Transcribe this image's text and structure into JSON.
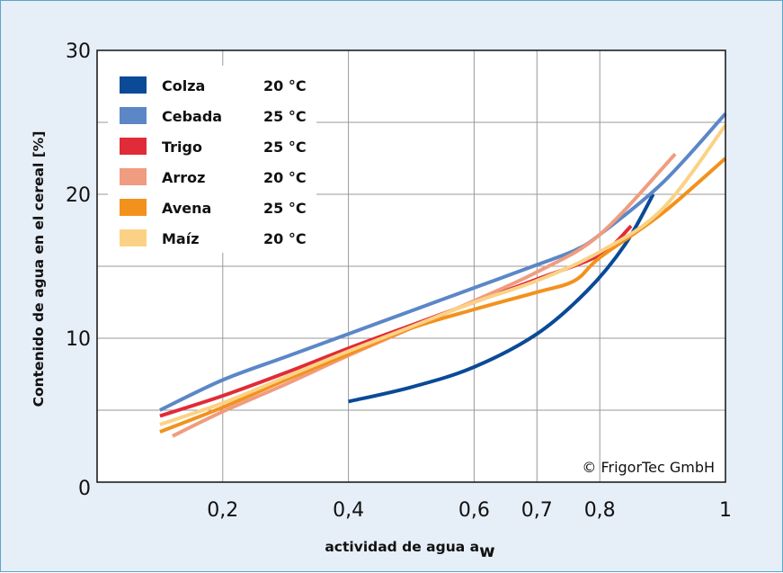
{
  "chart_data": {
    "type": "line",
    "xlabel": "actividad de agua a",
    "xlabel_subscript": "w",
    "ylabel": "Contenido de agua en el cereal [%]",
    "xlim": [
      0.0,
      1.0
    ],
    "ylim": [
      0,
      30
    ],
    "x_ticks": [
      {
        "value": 0.2,
        "label": "0,2"
      },
      {
        "value": 0.4,
        "label": "0,4"
      },
      {
        "value": 0.6,
        "label": "0,6"
      },
      {
        "value": 0.7,
        "label": "0,7"
      },
      {
        "value": 0.8,
        "label": "0,8"
      },
      {
        "value": 1.0,
        "label": "1"
      }
    ],
    "y_ticks": [
      {
        "value": 0,
        "label": "0"
      },
      {
        "value": 10,
        "label": "10"
      },
      {
        "value": 20,
        "label": "20"
      },
      {
        "value": 30,
        "label": "30"
      }
    ],
    "x_gridlines": [
      0.2,
      0.4,
      0.6,
      0.7,
      0.8
    ],
    "y_gridlines": [
      5,
      10,
      15,
      20,
      25
    ],
    "legend_position": "top-left",
    "credit": "© FrigorTec GmbH",
    "series": [
      {
        "name": "Colza",
        "temp": "20 °C",
        "color": "#0a4a97",
        "x": [
          0.4,
          0.5,
          0.6,
          0.7,
          0.78,
          0.84,
          0.885
        ],
        "y": [
          5.6,
          6.6,
          8.0,
          10.3,
          13.3,
          16.5,
          20.0
        ]
      },
      {
        "name": "Cebada",
        "temp": "25 °C",
        "color": "#5b87c7",
        "x": [
          0.1,
          0.2,
          0.3,
          0.4,
          0.5,
          0.6,
          0.7,
          0.76,
          0.8,
          0.9,
          1.0
        ],
        "y": [
          5.0,
          7.1,
          8.7,
          10.3,
          11.9,
          13.5,
          15.1,
          16.1,
          17.2,
          20.8,
          25.6
        ]
      },
      {
        "name": "Trigo",
        "temp": "25 °C",
        "color": "#e02b38",
        "x": [
          0.1,
          0.2,
          0.3,
          0.4,
          0.5,
          0.6,
          0.7,
          0.8,
          0.85
        ],
        "y": [
          4.6,
          6.0,
          7.6,
          9.3,
          10.9,
          12.5,
          14.1,
          15.8,
          17.8
        ]
      },
      {
        "name": "Arroz",
        "temp": "20 °C",
        "color": "#f09c80",
        "x": [
          0.12,
          0.2,
          0.3,
          0.4,
          0.5,
          0.6,
          0.7,
          0.8,
          0.92
        ],
        "y": [
          3.2,
          4.9,
          6.8,
          8.8,
          10.7,
          12.6,
          14.6,
          17.2,
          22.8
        ]
      },
      {
        "name": "Avena",
        "temp": "25 °C",
        "color": "#f2921d",
        "x": [
          0.1,
          0.2,
          0.3,
          0.4,
          0.5,
          0.6,
          0.7,
          0.76,
          0.8,
          0.9,
          1.0
        ],
        "y": [
          3.5,
          5.2,
          7.1,
          8.9,
          10.7,
          12.0,
          13.2,
          14.0,
          15.6,
          18.7,
          22.5
        ]
      },
      {
        "name": "Maíz",
        "temp": "20 °C",
        "color": "#fbd285",
        "x": [
          0.1,
          0.2,
          0.3,
          0.4,
          0.5,
          0.6,
          0.7,
          0.8,
          0.9,
          1.0
        ],
        "y": [
          4.0,
          5.5,
          7.3,
          9.1,
          10.8,
          12.5,
          14.0,
          16.0,
          19.0,
          24.8
        ]
      }
    ]
  }
}
